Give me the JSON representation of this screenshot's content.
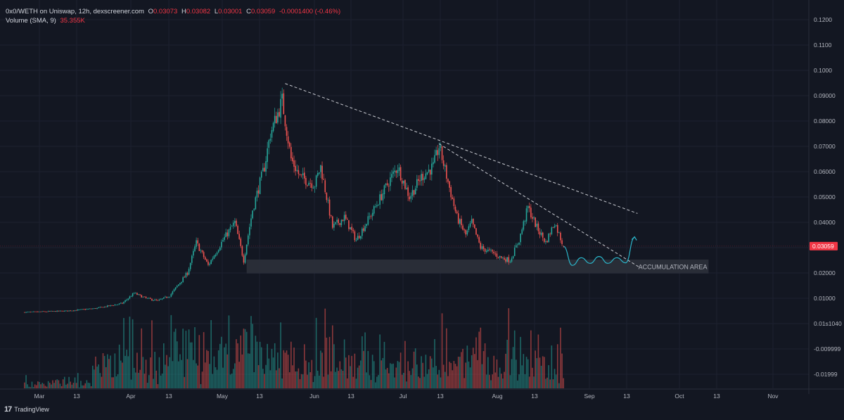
{
  "legend": {
    "title": "0x0/WETH on Uniswap, 12h, dexscreener.com",
    "o_key": "O",
    "o_val": "0.03073",
    "h_key": "H",
    "h_val": "0.03082",
    "l_key": "L",
    "l_val": "0.03001",
    "c_key": "C",
    "c_val": "0.03059",
    "change": "-0.0001400 (-0.46%)",
    "volume_label": "Volume (SMA, 9)",
    "volume_val": "35.355K"
  },
  "footer": {
    "brand": "TradingView"
  },
  "colors": {
    "background": "#131722",
    "up": "#26a69a",
    "down": "#ef5350",
    "price_tag": "#f23645",
    "projection": "#2bb5c9",
    "zone": "#2a2e39"
  },
  "chart_data": {
    "type": "candlestick",
    "interval": "12h",
    "price_axis": {
      "ticks": [
        "0.1200",
        "0.1100",
        "0.1000",
        "0.09000",
        "0.08000",
        "0.07000",
        "0.06000",
        "0.05000",
        "0.04000",
        "0.03000",
        "0.02000",
        "0.01000",
        "0.01s1040",
        "-0.009999",
        "-0.01999"
      ],
      "current_price": "0.03059"
    },
    "time_axis": {
      "ticks": [
        "Mar",
        "13",
        "Apr",
        "13",
        "May",
        "13",
        "Jun",
        "13",
        "Jul",
        "13",
        "Aug",
        "13",
        "Sep",
        "13",
        "Oct",
        "13",
        "Nov"
      ]
    },
    "price_path": [
      {
        "date": "2023-02-24",
        "price": 0.0045
      },
      {
        "date": "2023-03-10",
        "price": 0.005
      },
      {
        "date": "2023-03-20",
        "price": 0.006
      },
      {
        "date": "2023-03-29",
        "price": 0.008
      },
      {
        "date": "2023-04-02",
        "price": 0.012
      },
      {
        "date": "2023-04-06",
        "price": 0.01
      },
      {
        "date": "2023-04-10",
        "price": 0.009
      },
      {
        "date": "2023-04-14",
        "price": 0.011
      },
      {
        "date": "2023-04-20",
        "price": 0.02
      },
      {
        "date": "2023-04-23",
        "price": 0.032
      },
      {
        "date": "2023-04-27",
        "price": 0.023
      },
      {
        "date": "2023-05-02",
        "price": 0.033
      },
      {
        "date": "2023-05-06",
        "price": 0.04
      },
      {
        "date": "2023-05-09",
        "price": 0.025
      },
      {
        "date": "2023-05-12",
        "price": 0.045
      },
      {
        "date": "2023-05-16",
        "price": 0.062
      },
      {
        "date": "2023-05-18",
        "price": 0.075
      },
      {
        "date": "2023-05-22",
        "price": 0.088
      },
      {
        "date": "2023-05-25",
        "price": 0.065
      },
      {
        "date": "2023-05-28",
        "price": 0.058
      },
      {
        "date": "2023-06-02",
        "price": 0.055
      },
      {
        "date": "2023-06-04",
        "price": 0.062
      },
      {
        "date": "2023-06-08",
        "price": 0.038
      },
      {
        "date": "2023-06-12",
        "price": 0.042
      },
      {
        "date": "2023-06-16",
        "price": 0.033
      },
      {
        "date": "2023-06-22",
        "price": 0.045
      },
      {
        "date": "2023-06-27",
        "price": 0.056
      },
      {
        "date": "2023-06-30",
        "price": 0.062
      },
      {
        "date": "2023-07-04",
        "price": 0.05
      },
      {
        "date": "2023-07-08",
        "price": 0.058
      },
      {
        "date": "2023-07-12",
        "price": 0.062
      },
      {
        "date": "2023-07-14",
        "price": 0.07
      },
      {
        "date": "2023-07-17",
        "price": 0.056
      },
      {
        "date": "2023-07-20",
        "price": 0.042
      },
      {
        "date": "2023-07-23",
        "price": 0.035
      },
      {
        "date": "2023-07-25",
        "price": 0.04
      },
      {
        "date": "2023-07-28",
        "price": 0.03
      },
      {
        "date": "2023-08-01",
        "price": 0.028
      },
      {
        "date": "2023-08-04",
        "price": 0.026
      },
      {
        "date": "2023-08-07",
        "price": 0.025
      },
      {
        "date": "2023-08-10",
        "price": 0.033
      },
      {
        "date": "2023-08-13",
        "price": 0.046
      },
      {
        "date": "2023-08-16",
        "price": 0.038
      },
      {
        "date": "2023-08-19",
        "price": 0.032
      },
      {
        "date": "2023-08-22",
        "price": 0.04
      },
      {
        "date": "2023-08-25",
        "price": 0.0306
      }
    ],
    "annotations": [
      {
        "type": "trendline",
        "style": "dashed",
        "from": {
          "date": "2023-05-23",
          "price": 0.0948
        },
        "to": {
          "date": "2023-09-19",
          "price": 0.0435
        }
      },
      {
        "type": "trendline",
        "style": "dashed",
        "from": {
          "date": "2023-07-14",
          "price": 0.071
        },
        "to": {
          "date": "2023-09-20",
          "price": 0.022
        }
      },
      {
        "type": "rectangle",
        "label": "ACCUMULATION AREA",
        "from_date": "2023-05-10",
        "to_date": "2023-10-13",
        "price_low": 0.0198,
        "price_high": 0.0253
      },
      {
        "type": "projection_path",
        "points": [
          {
            "date": "2023-08-25",
            "price": 0.0305
          },
          {
            "date": "2023-08-28",
            "price": 0.023
          },
          {
            "date": "2023-08-31",
            "price": 0.026
          },
          {
            "date": "2023-09-03",
            "price": 0.0238
          },
          {
            "date": "2023-09-06",
            "price": 0.0265
          },
          {
            "date": "2023-09-09",
            "price": 0.0238
          },
          {
            "date": "2023-09-12",
            "price": 0.026
          },
          {
            "date": "2023-09-15",
            "price": 0.024
          },
          {
            "date": "2023-09-18",
            "price": 0.034
          }
        ]
      }
    ],
    "volume": {
      "sma_period": 9,
      "last_sma": "35.355K"
    }
  }
}
